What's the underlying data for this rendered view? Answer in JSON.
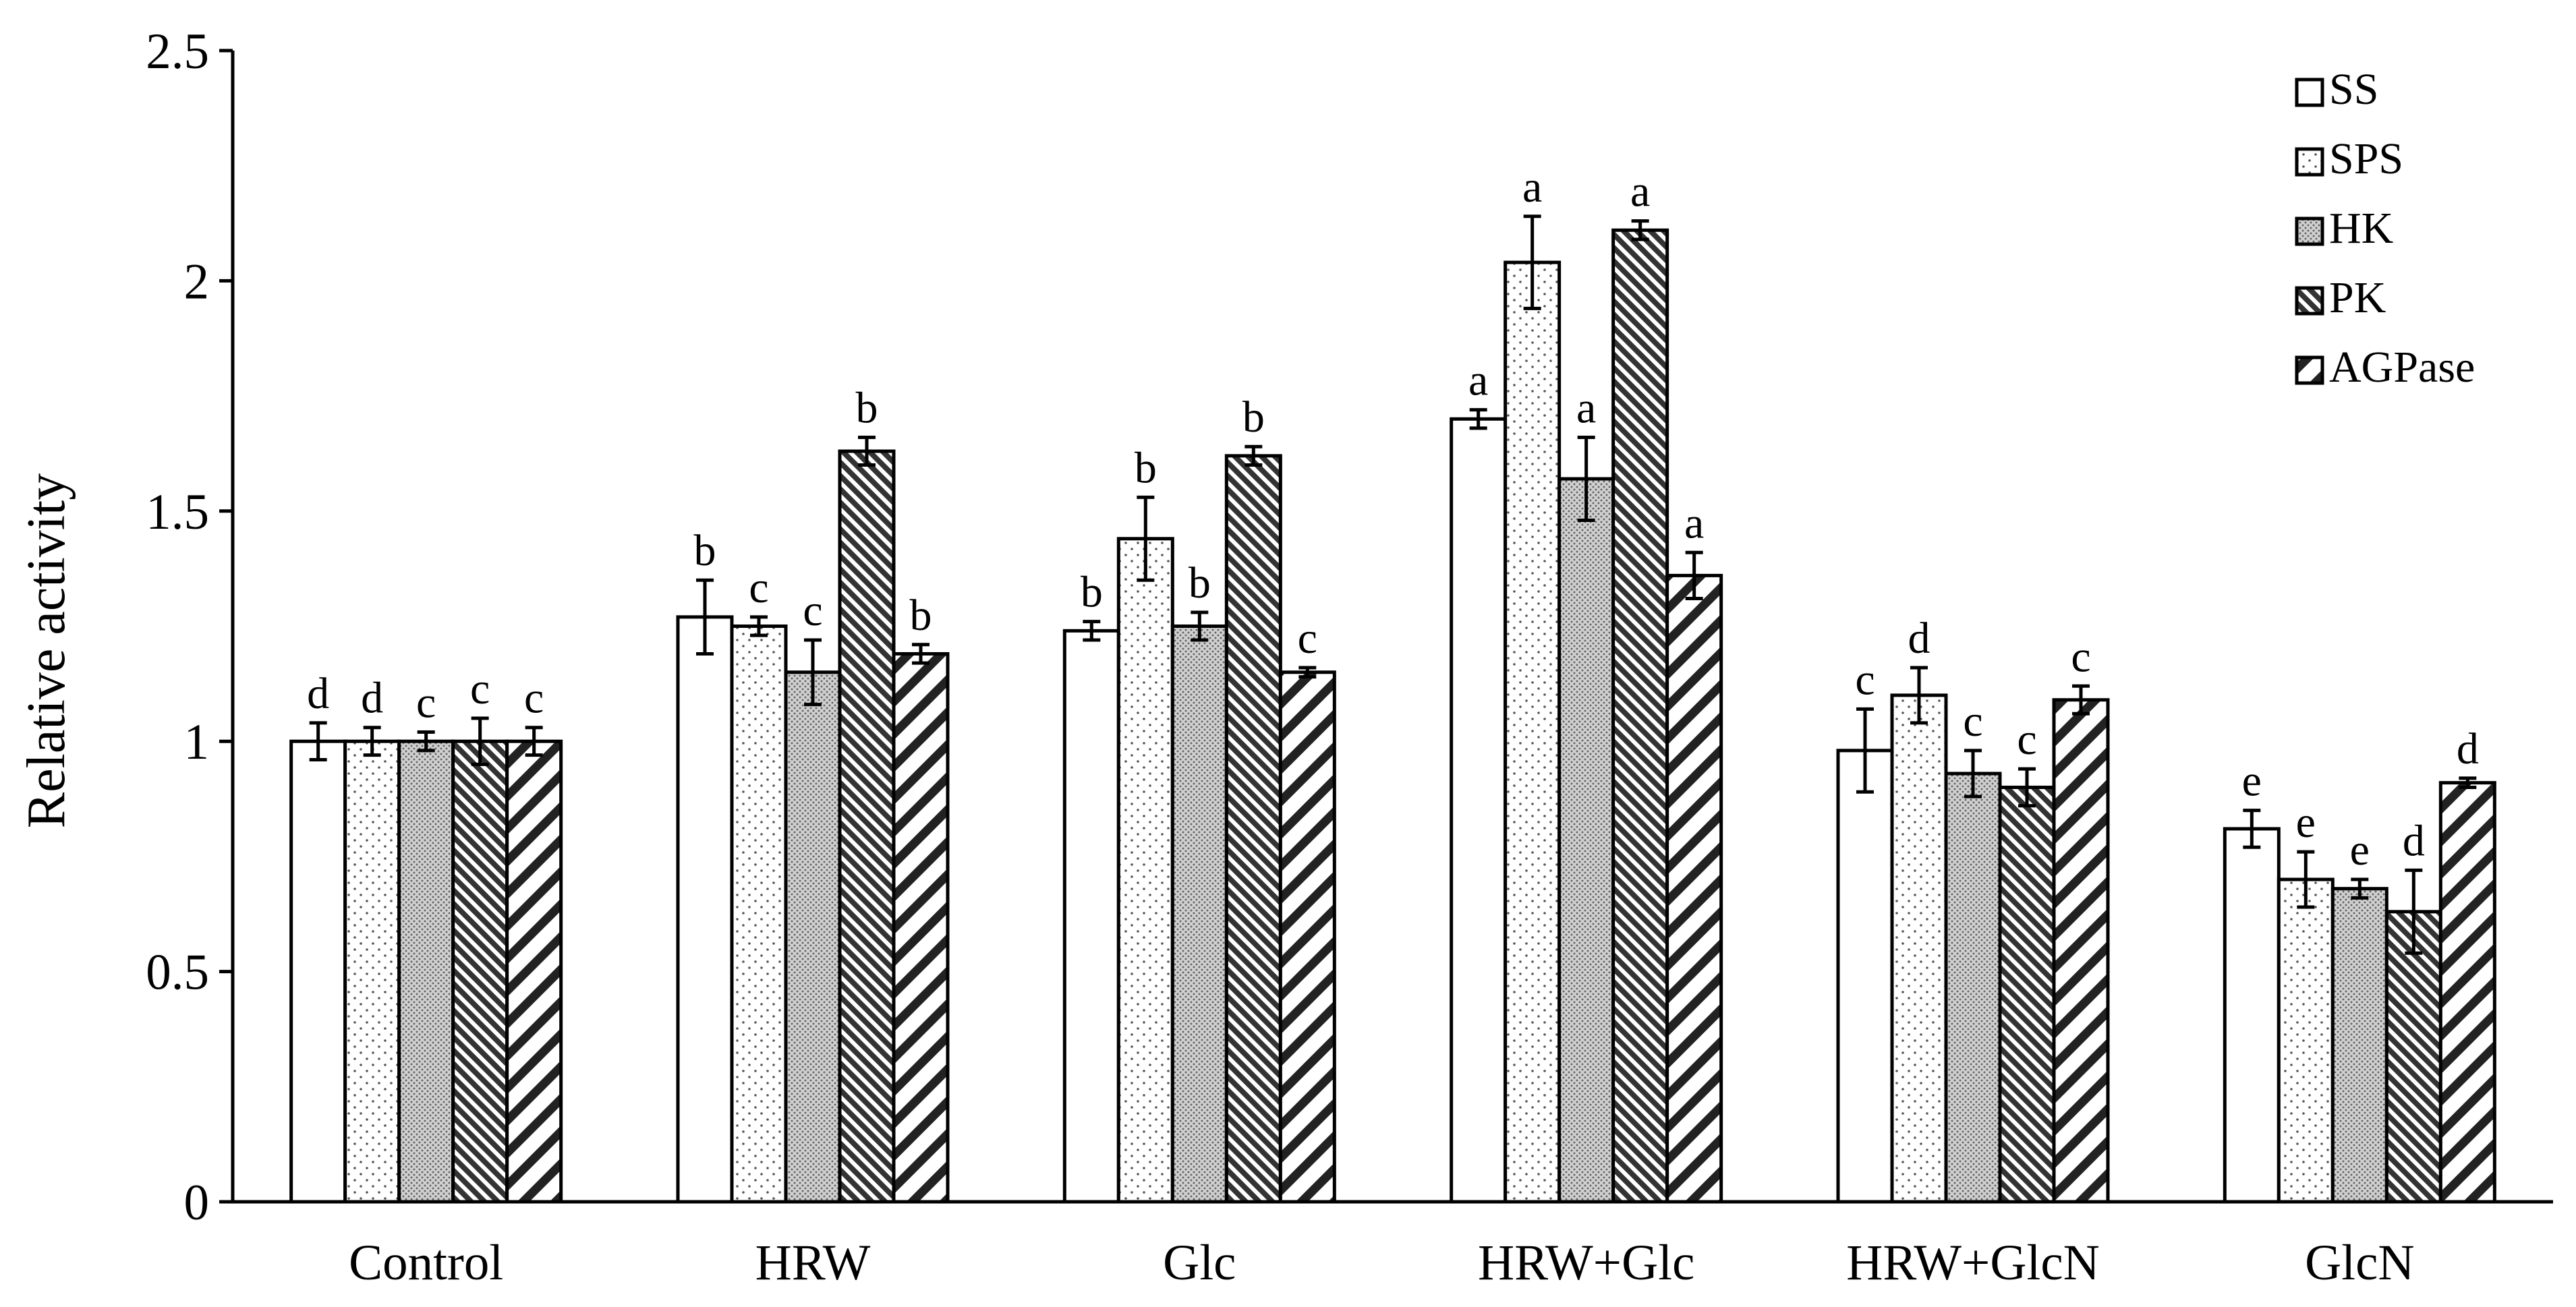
{
  "chart_data": {
    "type": "bar",
    "title": "",
    "xlabel": "",
    "ylabel": "Relative activity",
    "ylim": [
      0,
      2.5
    ],
    "yticks": [
      0,
      0.5,
      1,
      1.5,
      2,
      2.5
    ],
    "ytick_labels": [
      "0",
      "0.5",
      "1",
      "1.5",
      "2",
      "2.5"
    ],
    "grid": false,
    "legend_position": "top-right",
    "categories": [
      "Control",
      "HRW",
      "Glc",
      "HRW+Glc",
      "HRW+GlcN",
      "GlcN"
    ],
    "series": [
      {
        "name": "SS",
        "pattern": "white",
        "values": [
          1.0,
          1.27,
          1.24,
          1.7,
          0.98,
          0.81
        ],
        "errors": [
          0.04,
          0.08,
          0.02,
          0.02,
          0.09,
          0.04
        ],
        "letters": [
          "d",
          "b",
          "b",
          "a",
          "c",
          "e"
        ]
      },
      {
        "name": "SPS",
        "pattern": "dots",
        "values": [
          1.0,
          1.25,
          1.44,
          2.04,
          1.1,
          0.7
        ],
        "errors": [
          0.03,
          0.02,
          0.09,
          0.1,
          0.06,
          0.06
        ],
        "letters": [
          "d",
          "c",
          "b",
          "a",
          "d",
          "e"
        ]
      },
      {
        "name": "HK",
        "pattern": "dense-dots",
        "values": [
          1.0,
          1.15,
          1.25,
          1.57,
          0.93,
          0.68
        ],
        "errors": [
          0.02,
          0.07,
          0.03,
          0.09,
          0.05,
          0.02
        ],
        "letters": [
          "c",
          "c",
          "b",
          "a",
          "c",
          "e"
        ]
      },
      {
        "name": "PK",
        "pattern": "dense-backslash",
        "values": [
          1.0,
          1.63,
          1.62,
          2.11,
          0.9,
          0.63
        ],
        "errors": [
          0.05,
          0.03,
          0.02,
          0.02,
          0.04,
          0.09
        ],
        "letters": [
          "c",
          "b",
          "b",
          "a",
          "c",
          "d"
        ]
      },
      {
        "name": "AGPase",
        "pattern": "forward-slash",
        "values": [
          1.0,
          1.19,
          1.15,
          1.36,
          1.09,
          0.91
        ],
        "errors": [
          0.03,
          0.02,
          0.01,
          0.05,
          0.03,
          0.01
        ],
        "letters": [
          "c",
          "b",
          "c",
          "a",
          "c",
          "d"
        ]
      }
    ]
  }
}
